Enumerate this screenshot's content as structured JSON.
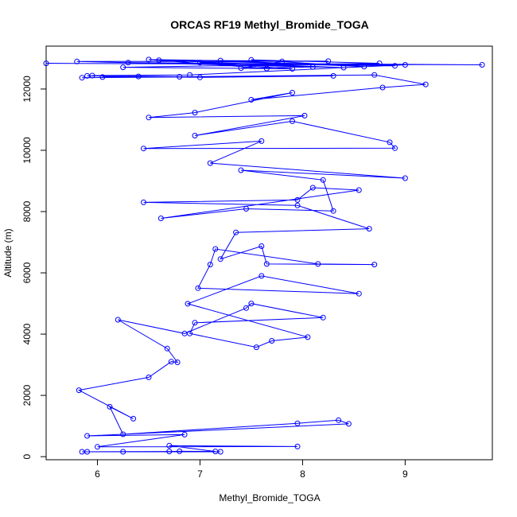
{
  "chart_data": {
    "type": "scatter",
    "title": "ORCAS RF19 Methyl_Bromide_TOGA",
    "xlabel": "Methyl_Bromide_TOGA",
    "ylabel": "Altitude (m)",
    "xlim": [
      5.5,
      9.85
    ],
    "ylim": [
      -100,
      13400
    ],
    "xticks": [
      6,
      7,
      8,
      9
    ],
    "yticks": [
      0,
      2000,
      4000,
      6000,
      8000,
      10000,
      12000
    ],
    "grid": false,
    "legend": "none",
    "series_color": "#0000ff",
    "connect_points": true,
    "series": [
      {
        "points": [
          [
            5.85,
            160
          ],
          [
            7.2,
            160
          ],
          [
            6.25,
            160
          ],
          [
            5.9,
            160
          ],
          [
            6.7,
            170
          ],
          [
            6.8,
            175
          ],
          [
            7.15,
            170
          ],
          [
            6.7,
            360
          ],
          [
            7.95,
            330
          ],
          [
            6.0,
            320
          ],
          [
            6.85,
            720
          ],
          [
            5.9,
            680
          ],
          [
            8.45,
            1070
          ],
          [
            8.35,
            1190
          ],
          [
            7.95,
            1090
          ],
          [
            6.25,
            730
          ],
          [
            6.12,
            1630
          ],
          [
            6.35,
            1240
          ],
          [
            5.82,
            2170
          ],
          [
            6.5,
            2590
          ],
          [
            6.72,
            3100
          ],
          [
            6.78,
            3080
          ],
          [
            6.68,
            3530
          ],
          [
            6.2,
            4470
          ],
          [
            6.85,
            4020
          ],
          [
            7.45,
            4850
          ],
          [
            7.5,
            5000
          ],
          [
            8.2,
            4540
          ],
          [
            6.95,
            4370
          ],
          [
            6.9,
            4020
          ],
          [
            7.55,
            3570
          ],
          [
            7.7,
            3780
          ],
          [
            8.05,
            3900
          ],
          [
            6.88,
            4990
          ],
          [
            7.6,
            5900
          ],
          [
            8.55,
            5320
          ],
          [
            6.98,
            5500
          ],
          [
            7.1,
            6270
          ],
          [
            7.15,
            6780
          ],
          [
            8.15,
            6290
          ],
          [
            8.7,
            6270
          ],
          [
            7.65,
            6290
          ],
          [
            7.6,
            6870
          ],
          [
            7.2,
            6450
          ],
          [
            7.35,
            7320
          ],
          [
            8.65,
            7440
          ],
          [
            7.95,
            8200
          ],
          [
            6.45,
            8300
          ],
          [
            7.95,
            8380
          ],
          [
            8.1,
            8780
          ],
          [
            8.55,
            8700
          ],
          [
            6.62,
            7780
          ],
          [
            7.45,
            8090
          ],
          [
            8.3,
            8020
          ],
          [
            8.2,
            9030
          ],
          [
            7.4,
            9350
          ],
          [
            9.0,
            9090
          ],
          [
            7.1,
            9580
          ],
          [
            7.6,
            10300
          ],
          [
            6.45,
            10060
          ],
          [
            8.9,
            10070
          ],
          [
            8.85,
            10260
          ],
          [
            7.9,
            10950
          ],
          [
            6.95,
            10480
          ],
          [
            8.02,
            11130
          ],
          [
            6.5,
            11070
          ],
          [
            6.95,
            11230
          ],
          [
            7.9,
            11880
          ],
          [
            7.5,
            11650
          ],
          [
            8.78,
            12050
          ],
          [
            9.2,
            12150
          ],
          [
            8.7,
            12460
          ],
          [
            5.85,
            12370
          ],
          [
            8.3,
            12430
          ],
          [
            7.0,
            12380
          ],
          [
            5.9,
            12430
          ],
          [
            6.4,
            12410
          ],
          [
            6.05,
            12390
          ],
          [
            6.8,
            12400
          ],
          [
            5.95,
            12440
          ],
          [
            6.9,
            12460
          ],
          [
            9.0,
            12790
          ],
          [
            5.5,
            12840
          ],
          [
            9.75,
            12790
          ],
          [
            6.3,
            12860
          ],
          [
            8.9,
            12760
          ],
          [
            6.6,
            12940
          ],
          [
            8.4,
            12700
          ],
          [
            5.8,
            12900
          ],
          [
            8.25,
            12910
          ],
          [
            7.2,
            12930
          ],
          [
            8.6,
            12730
          ],
          [
            7.5,
            12950
          ],
          [
            8.75,
            12840
          ],
          [
            6.25,
            12710
          ],
          [
            7.9,
            12660
          ],
          [
            7.0,
            12860
          ],
          [
            8.1,
            12720
          ],
          [
            7.4,
            12680
          ],
          [
            7.8,
            12900
          ],
          [
            6.5,
            12960
          ],
          [
            7.65,
            12670
          ]
        ]
      }
    ]
  }
}
